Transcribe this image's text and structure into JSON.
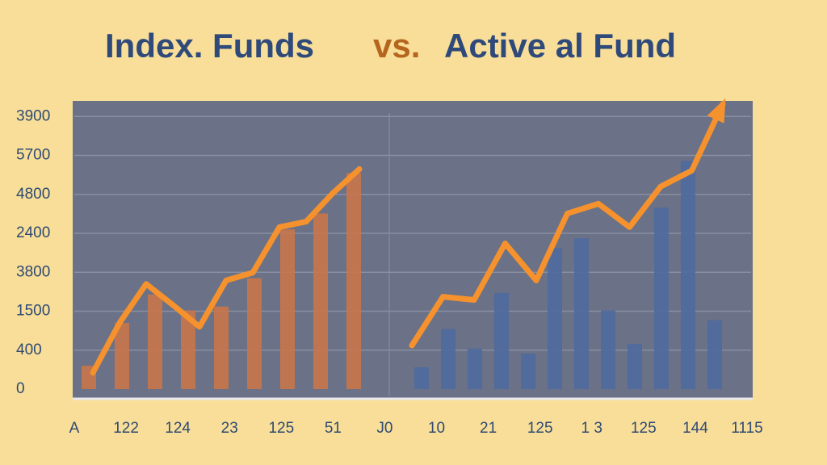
{
  "chart_data": {
    "type": "bar-line",
    "title_parts": [
      {
        "text": "Index. Funds",
        "color": "#2f4a7a"
      },
      {
        "text": "vs.",
        "color": "#b5651d"
      },
      {
        "text": "Active al Fund",
        "color": "#2f4a7a"
      }
    ],
    "ylim": [
      0,
      7.4
    ],
    "yticks": [
      {
        "value": 0,
        "label": "0"
      },
      {
        "value": 1,
        "label": "400"
      },
      {
        "value": 2,
        "label": "1500"
      },
      {
        "value": 3,
        "label": "3800"
      },
      {
        "value": 4,
        "label": "2400"
      },
      {
        "value": 5,
        "label": "4800"
      },
      {
        "value": 6,
        "label": "5700"
      },
      {
        "value": 7,
        "label": "3900"
      }
    ],
    "x_labels": [
      "A",
      "122",
      "124",
      "23",
      "125",
      "51",
      "J0",
      "10",
      "21",
      "125",
      "1 3",
      "125",
      "144",
      "1115"
    ],
    "grid": true,
    "panels": [
      {
        "bar_color": "#c9764a",
        "line_color": "#f5922e",
        "bars": [
          0.6,
          1.7,
          2.43,
          2.02,
          2.12,
          2.85,
          4.1,
          4.51,
          5.55
        ],
        "line": [
          0.42,
          1.7,
          2.7,
          2.16,
          1.6,
          2.79,
          2.99,
          4.16,
          4.3,
          5.03,
          5.65
        ]
      },
      {
        "bar_color": "#4e6a9f",
        "line_color": "#f5922e",
        "bars": [
          0.56,
          1.54,
          1.04,
          2.47,
          0.91,
          3.62,
          3.87,
          2.02,
          1.16,
          4.66,
          5.86,
          1.77
        ],
        "line": [
          1.12,
          2.37,
          2.29,
          3.74,
          2.79,
          4.51,
          4.76,
          4.16,
          5.2,
          5.61,
          7.32
        ]
      }
    ]
  }
}
